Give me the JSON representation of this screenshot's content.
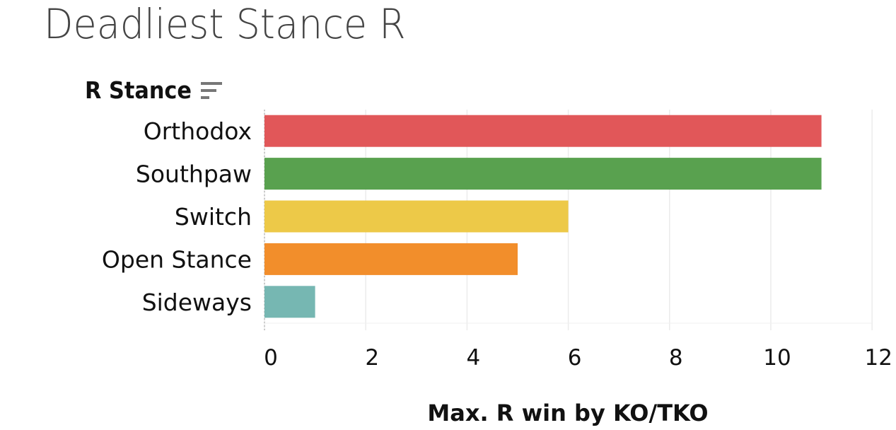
{
  "title": "Deadliest Stance R",
  "dimension_label": "R Stance",
  "sort_icon": "sort-descending-icon",
  "chart_data": {
    "type": "bar",
    "orientation": "horizontal",
    "title": "Deadliest Stance R",
    "ylabel": "R Stance",
    "xlabel": "Max. R win by KO/TKO",
    "categories": [
      "Orthodox",
      "Southpaw",
      "Switch",
      "Open Stance",
      "Sideways"
    ],
    "values": [
      11,
      11,
      6,
      5,
      1
    ],
    "colors": [
      "#e15759",
      "#59a14f",
      "#edc948",
      "#f28e2b",
      "#76b7b2"
    ],
    "xlim": [
      0,
      12
    ],
    "xticks": [
      "0",
      "2",
      "4",
      "6",
      "8",
      "10",
      "12"
    ],
    "grid": true,
    "legend": "none"
  }
}
